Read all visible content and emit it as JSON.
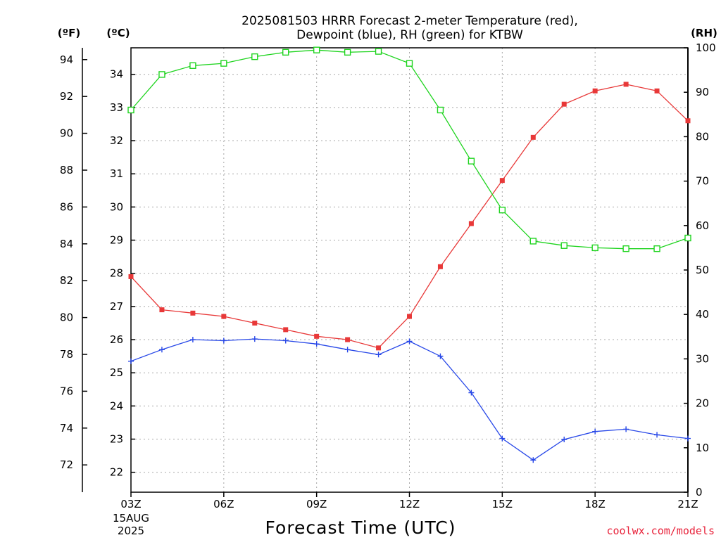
{
  "title_line1": "2025081503 HRRR Forecast 2-meter Temperature (red),",
  "title_line2": "Dewpoint (blue), RH (green) for KTBW",
  "credit": "coolwx.com/models",
  "credit_color": "#e8223a",
  "chart_data": {
    "type": "line",
    "title": "2025081503 HRRR Forecast 2-meter Temperature (red), Dewpoint (blue), RH (green) for KTBW",
    "xlabel": "Forecast Time (UTC)",
    "x_date_label": [
      "15AUG",
      "2025"
    ],
    "x_ticks": [
      "03Z",
      "06Z",
      "09Z",
      "12Z",
      "15Z",
      "18Z",
      "21Z"
    ],
    "x": [
      "03Z",
      "04Z",
      "05Z",
      "06Z",
      "07Z",
      "08Z",
      "09Z",
      "10Z",
      "11Z",
      "12Z",
      "13Z",
      "14Z",
      "15Z",
      "16Z",
      "17Z",
      "18Z",
      "19Z",
      "20Z",
      "21Z"
    ],
    "axes": {
      "fahrenheit": {
        "label": "(ºF)",
        "ticks": [
          72,
          74,
          76,
          78,
          80,
          82,
          84,
          86,
          88,
          90,
          92,
          94
        ]
      },
      "celsius": {
        "label": "(ºC)",
        "range": [
          21.4,
          34.8
        ],
        "ticks": [
          22,
          23,
          24,
          25,
          26,
          27,
          28,
          29,
          30,
          31,
          32,
          33,
          34
        ]
      },
      "rh": {
        "label": "(RH)",
        "range": [
          0,
          100
        ],
        "ticks": [
          0,
          10,
          20,
          30,
          40,
          50,
          60,
          70,
          80,
          90,
          100
        ]
      }
    },
    "grid": true,
    "series": [
      {
        "name": "Temperature",
        "axis": "celsius",
        "color": "#e83838",
        "marker": "filled-square",
        "values": [
          27.9,
          26.9,
          26.8,
          26.7,
          26.5,
          26.3,
          26.1,
          26.0,
          25.75,
          26.7,
          28.2,
          29.5,
          30.8,
          32.1,
          33.1,
          33.5,
          33.7,
          33.5,
          32.6
        ]
      },
      {
        "name": "Dewpoint",
        "axis": "celsius",
        "color": "#2848e8",
        "marker": "plus",
        "values": [
          25.35,
          25.7,
          26.0,
          25.97,
          26.02,
          25.97,
          25.87,
          25.7,
          25.55,
          25.95,
          25.5,
          24.4,
          23.02,
          22.37,
          22.99,
          23.23,
          23.3,
          23.13,
          23.02
        ]
      },
      {
        "name": "RH",
        "axis": "rh",
        "color": "#1ed41e",
        "marker": "open-square",
        "values": [
          86,
          94,
          96,
          96.5,
          98,
          99,
          99.5,
          99,
          99.2,
          96.5,
          86,
          74.5,
          63.5,
          56.5,
          55.5,
          55,
          54.8,
          54.8,
          57.2
        ]
      }
    ]
  }
}
